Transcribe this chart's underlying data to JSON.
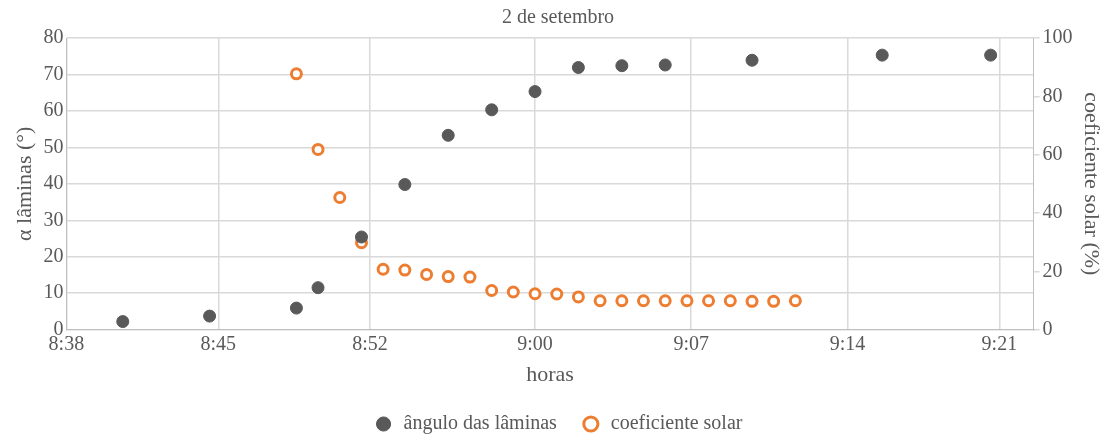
{
  "chart_data": {
    "type": "scatter",
    "title": "2 de setembro",
    "xlabel": "horas",
    "ylabel": "α lâminas (°)",
    "y2label": "coeficiente solar (%)",
    "xlim": [
      8.64,
      9.383
    ],
    "xticks": [
      {
        "value": 8.64,
        "label": "8:38"
      },
      {
        "value": 8.7567,
        "label": "8:45"
      },
      {
        "value": 8.8733,
        "label": "8:52"
      },
      {
        "value": 9.0,
        "label": "9:00"
      },
      {
        "value": 9.12,
        "label": "9:07"
      },
      {
        "value": 9.24,
        "label": "9:14"
      },
      {
        "value": 9.3567,
        "label": "9:21"
      }
    ],
    "ylim": [
      0,
      80
    ],
    "yticks": [
      0,
      10,
      20,
      30,
      40,
      50,
      60,
      70,
      80
    ],
    "y2lim": [
      0,
      100
    ],
    "y2ticks": [
      0,
      20,
      40,
      60,
      80,
      100
    ],
    "grid": true,
    "legend": "bottom",
    "marker": "circle",
    "series": [
      {
        "name": "ângulo das lâminas",
        "color": "#595959",
        "x": [
          8.6833,
          8.75,
          8.8167,
          8.8333,
          8.8667,
          8.9,
          8.9333,
          8.9667,
          9.0,
          9.0333,
          9.0667,
          9.1,
          9.1667,
          9.2667,
          9.35
        ],
        "values": [
          2.2,
          3.7,
          5.9,
          11.5,
          25.4,
          39.8,
          53.3,
          60.3,
          65.3,
          71.9,
          72.4,
          72.6,
          73.9,
          75.3,
          75.3
        ]
      },
      {
        "name": "coeficiente solar",
        "color": "#ed7d31",
        "axis": "y2",
        "x": [
          8.8167,
          8.8333,
          8.85,
          8.8667,
          8.8833,
          8.9,
          8.9167,
          8.9333,
          8.95,
          8.9667,
          8.9833,
          9.0,
          9.0167,
          9.0333,
          9.05,
          9.0667,
          9.0833,
          9.1,
          9.1167,
          9.1333,
          9.15,
          9.1667,
          9.1833,
          9.2
        ],
        "values": [
          87.7,
          61.8,
          45.3,
          29.8,
          20.7,
          20.4,
          18.9,
          18.2,
          18.0,
          13.4,
          12.9,
          12.3,
          12.2,
          11.2,
          9.9,
          9.9,
          9.9,
          9.9,
          9.9,
          9.9,
          9.9,
          9.7,
          9.7,
          9.9
        ]
      }
    ]
  }
}
